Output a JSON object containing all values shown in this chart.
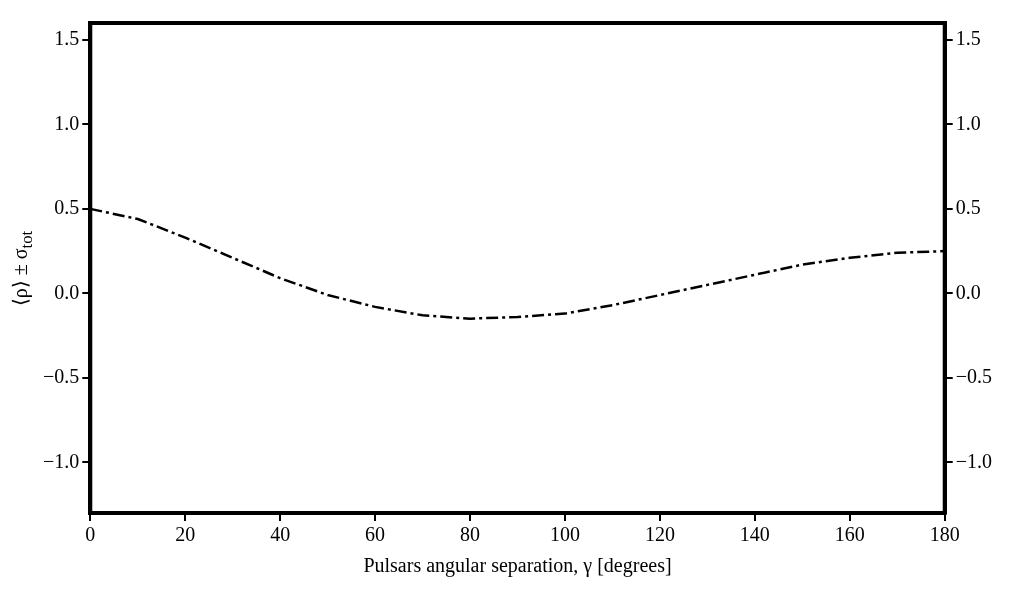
{
  "chart_data": {
    "type": "line",
    "xlabel": "Pulsars angular separation, γ [degrees]",
    "ylabel": "⟨ρ⟩ ± σ$_{tot}$",
    "x": [
      0,
      10,
      20,
      30,
      40,
      50,
      60,
      70,
      80,
      90,
      100,
      110,
      120,
      130,
      140,
      150,
      160,
      170,
      180
    ],
    "series": [
      {
        "color": "#000000",
        "values": [
          0.5,
          0.44,
          0.33,
          0.21,
          0.09,
          -0.01,
          -0.08,
          -0.13,
          -0.15,
          -0.14,
          -0.12,
          -0.07,
          -0.01,
          0.05,
          0.11,
          0.17,
          0.21,
          0.24,
          0.25
        ]
      }
    ],
    "line_style": "dashed",
    "marker": "none",
    "xlim": [
      0,
      180
    ],
    "xticks": [
      0,
      20,
      40,
      60,
      80,
      100,
      120,
      140,
      160,
      180
    ],
    "ylim": [
      -1.3,
      1.6
    ],
    "yticks": [
      {
        "value": -1,
        "label": "−1.0"
      },
      {
        "value": -0.5,
        "label": "−0.5"
      },
      {
        "value": 0,
        "label": "0.0"
      },
      {
        "value": 0.5,
        "label": "0.5"
      },
      {
        "value": 1,
        "label": "1.0"
      },
      {
        "value": 1.5,
        "label": "1.5"
      }
    ],
    "y2lim": [
      -1.3,
      1.6
    ],
    "y2ticks": [
      {
        "value": -1,
        "label": "−1.0"
      },
      {
        "value": -0.5,
        "label": "−0.5"
      },
      {
        "value": 0,
        "label": "0.0"
      },
      {
        "value": 0.5,
        "label": "0.5"
      },
      {
        "value": 1,
        "label": "1.0"
      },
      {
        "value": 1.5,
        "label": "1.5"
      }
    ]
  }
}
